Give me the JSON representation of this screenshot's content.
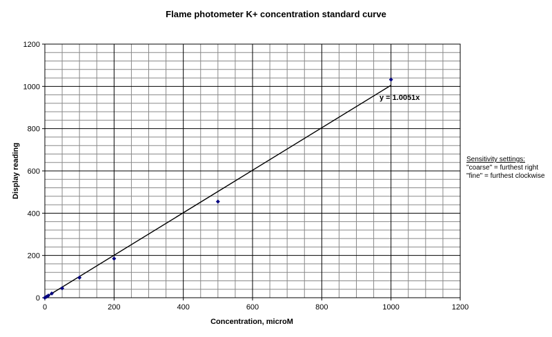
{
  "chart_data": {
    "type": "scatter",
    "title": "Flame photometer K+ concentration standard curve",
    "xlabel": "Concentration, microM",
    "ylabel": "Display reading",
    "xlim": [
      0,
      1200
    ],
    "ylim": [
      0,
      1200
    ],
    "x_ticks": [
      0,
      200,
      400,
      600,
      800,
      1000,
      1200
    ],
    "y_ticks": [
      0,
      200,
      400,
      600,
      800,
      1000,
      1200
    ],
    "x_major_step": 200,
    "x_minor_step": 50,
    "y_major_step": 200,
    "y_minor_step": 40,
    "grid": true,
    "series": [
      {
        "points": [
          {
            "x": 0,
            "y": 0
          },
          {
            "x": 5,
            "y": 5
          },
          {
            "x": 10,
            "y": 10
          },
          {
            "x": 20,
            "y": 20
          },
          {
            "x": 50,
            "y": 45
          },
          {
            "x": 100,
            "y": 95
          },
          {
            "x": 200,
            "y": 185
          },
          {
            "x": 500,
            "y": 455
          },
          {
            "x": 1000,
            "y": 1032
          }
        ],
        "marker": "diamond",
        "color": "#000080"
      }
    ],
    "trendline": {
      "type": "linear-through-origin",
      "slope": 1.0051,
      "x_range": [
        0,
        1000
      ],
      "equation_label": "y = 1.0051x"
    }
  },
  "annotation": {
    "header": "Sensitivity settings:",
    "lines": [
      "\"coarse\" = furthest right",
      "\"fine\" = furthest clockwise"
    ]
  }
}
